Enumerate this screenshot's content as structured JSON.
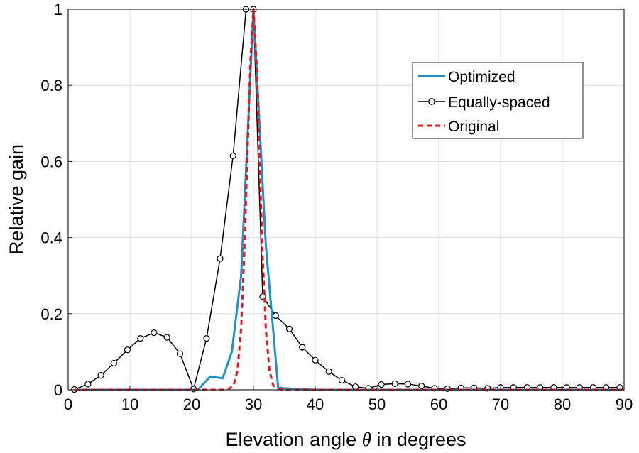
{
  "chart_data": {
    "type": "line",
    "xlabel_prefix": "Elevation angle ",
    "xlabel_symbol": "θ",
    "xlabel_suffix": " in degrees",
    "ylabel": "Relative gain",
    "xlim": [
      0,
      90
    ],
    "ylim": [
      0,
      1
    ],
    "grid": true,
    "legend_position": "top-right",
    "xticks": [
      0,
      10,
      20,
      30,
      40,
      50,
      60,
      70,
      80,
      90
    ],
    "yticks": [
      0,
      0.2,
      0.4,
      0.6,
      0.8,
      1
    ],
    "xtick_labels": [
      "0",
      "10",
      "20",
      "30",
      "40",
      "50",
      "60",
      "70",
      "80",
      "90"
    ],
    "ytick_labels": [
      "0",
      "0.2",
      "0.4",
      "0.6",
      "0.8",
      "1"
    ],
    "series": [
      {
        "name": "Optimized",
        "color": "#1f8fcf",
        "style": "solid",
        "x": [
          1,
          21,
          23,
          25,
          26.5,
          28,
          30,
          32,
          34,
          37,
          40,
          90
        ],
        "y": [
          0,
          0,
          0.035,
          0.03,
          0.1,
          0.3,
          1.0,
          0.38,
          0.005,
          0.002,
          0,
          0
        ]
      },
      {
        "name": "Equally-spaced",
        "color": "#000000",
        "style": "solid-circle",
        "x": [
          1,
          3.2,
          5.3,
          7.4,
          9.6,
          11.7,
          13.9,
          16.0,
          18.1,
          20.3,
          22.4,
          24.6,
          26.7,
          28.8,
          30,
          31.5,
          33.6,
          35.8,
          37.9,
          40.0,
          42.2,
          44.3,
          46.5,
          48.6,
          50.7,
          52.9,
          55.0,
          57.2,
          59.3,
          61.4,
          63.6,
          65.7,
          67.9,
          70.0,
          72.1,
          74.3,
          76.4,
          78.6,
          80.7,
          82.8,
          85.0,
          87.1,
          89.3
        ],
        "y": [
          0.001,
          0.015,
          0.038,
          0.07,
          0.105,
          0.135,
          0.15,
          0.138,
          0.095,
          0.002,
          0.135,
          0.345,
          0.615,
          1.0,
          1.0,
          0.245,
          0.195,
          0.16,
          0.112,
          0.078,
          0.048,
          0.025,
          0.008,
          0.004,
          0.014,
          0.016,
          0.015,
          0.01,
          0.004,
          0.003,
          0.005,
          0.005,
          0.004,
          0.006,
          0.006,
          0.006,
          0.006,
          0.006,
          0.006,
          0.006,
          0.006,
          0.006,
          0.006
        ]
      },
      {
        "name": "Original",
        "color": "#e8141c",
        "style": "dashed",
        "x": [
          1,
          25,
          26,
          26.8,
          27.4,
          28,
          28.5,
          29,
          29.5,
          30,
          30.5,
          31,
          31.5,
          32,
          32.6,
          33.2,
          34,
          35,
          90
        ],
        "y": [
          0,
          0,
          0.002,
          0.012,
          0.05,
          0.16,
          0.35,
          0.6,
          0.86,
          1.0,
          0.86,
          0.6,
          0.35,
          0.16,
          0.05,
          0.012,
          0.002,
          0,
          0
        ]
      }
    ]
  }
}
